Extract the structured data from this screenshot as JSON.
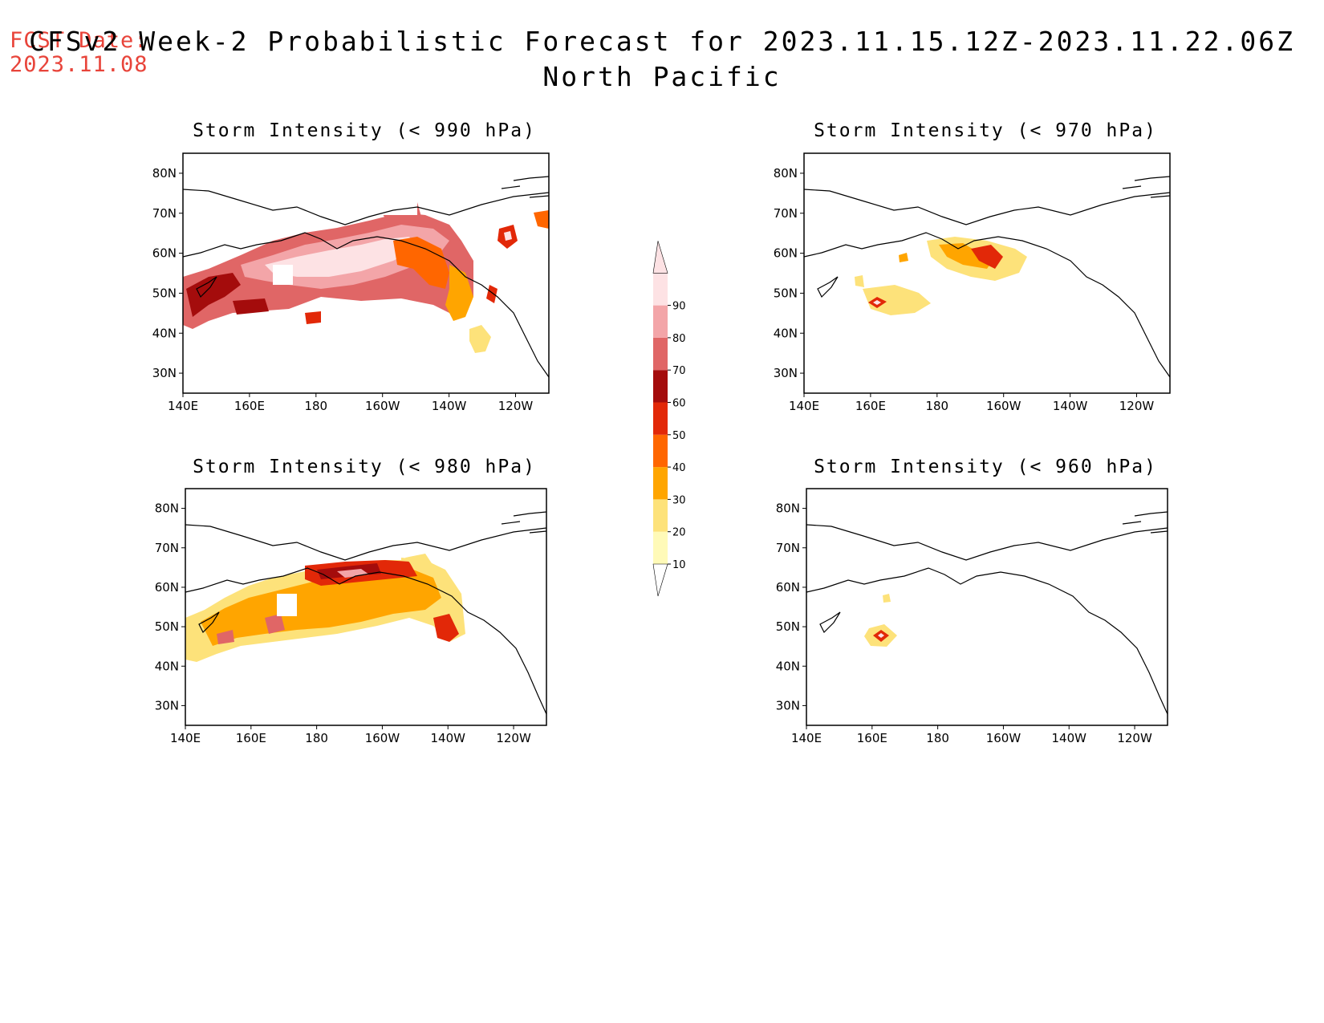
{
  "header": {
    "fcst_label": "FCST Date:",
    "fcst_date": "2023.11.08",
    "title_line1": "CFSv2 Week-2 Probabilistic Forecast for 2023.11.15.12Z-2023.11.22.06Z",
    "title_line2": "North Pacific"
  },
  "colors": {
    "fcst_text": "#e8443a",
    "levels": [
      "#fffab8",
      "#fde27a",
      "#ffa500",
      "#ff6600",
      "#e22808",
      "#a40c0c",
      "#e06666",
      "#f3a5a8",
      "#fde2e4"
    ]
  },
  "panels": [
    {
      "title": "Storm Intensity (< 990 hPa)"
    },
    {
      "title": "Storm Intensity (< 970 hPa)"
    },
    {
      "title": "Storm Intensity (< 980 hPa)"
    },
    {
      "title": "Storm Intensity (< 960 hPa)"
    }
  ],
  "axes": {
    "lat_labels": [
      "80N",
      "70N",
      "60N",
      "50N",
      "40N",
      "30N"
    ],
    "lon_labels": [
      "140E",
      "160E",
      "180",
      "160W",
      "140W",
      "120W"
    ]
  },
  "colorbar": {
    "labels": [
      "10",
      "20",
      "30",
      "40",
      "50",
      "60",
      "70",
      "80",
      "90"
    ]
  }
}
